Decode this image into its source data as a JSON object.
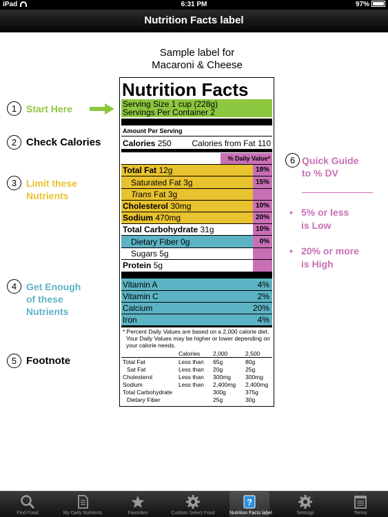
{
  "status": {
    "device": "iPad",
    "time": "6:31 PM",
    "battery": "97%"
  },
  "navbar": {
    "title": "Nutrition Facts label"
  },
  "sample": {
    "line1": "Sample label for",
    "line2": "Macaroni & Cheese"
  },
  "steps": [
    {
      "num": "1",
      "text": "Start Here"
    },
    {
      "num": "2",
      "text": "Check Calories"
    },
    {
      "num": "3",
      "line1": "Limit these",
      "line2": "Nutrients"
    },
    {
      "num": "4",
      "line1": "Get Enough",
      "line2": "of these",
      "line3": "Nutrients"
    },
    {
      "num": "5",
      "text": "Footnote"
    },
    {
      "num": "6",
      "line1": "Quick Guide",
      "line2": "to % DV"
    }
  ],
  "guide": {
    "b1_line1": "5% or less",
    "b1_line2": "is Low",
    "b2_line1": "20% or more",
    "b2_line2": "is High",
    "bullet": "•"
  },
  "label": {
    "title": "Nutrition Facts",
    "serving_size": "Serving Size 1 cup (228g)",
    "servings_per": "Servings Per Container 2",
    "amount_per": "Amount Per Serving",
    "calories_label": "Calories",
    "calories_value": "250",
    "calories_fat": "Calories from Fat 110",
    "dv_header": "% Daily Value*",
    "nutrients": [
      {
        "name": "Total Fat",
        "amount": "12g",
        "pct": "18%"
      },
      {
        "name": "Saturated Fat",
        "amount": "3g",
        "pct": "15%"
      },
      {
        "name": "Trans",
        "amount": "Fat 3g",
        "pct": ""
      },
      {
        "name": "Cholesterol",
        "amount": "30mg",
        "pct": "10%"
      },
      {
        "name": "Sodium",
        "amount": "470mg",
        "pct": "20%"
      },
      {
        "name": "Total Carbohydrate",
        "amount": "31g",
        "pct": "10%"
      },
      {
        "name": "Dietary Fiber",
        "amount": "0g",
        "pct": "0%"
      },
      {
        "name": "Sugars",
        "amount": "5g",
        "pct": ""
      },
      {
        "name": "Protein",
        "amount": "5g",
        "pct": ""
      }
    ],
    "vitamins": [
      {
        "name": "Vitamin A",
        "pct": "4%"
      },
      {
        "name": "Vitamin C",
        "pct": "2%"
      },
      {
        "name": "Calcium",
        "pct": "20%"
      },
      {
        "name": "Iron",
        "pct": "4%"
      }
    ],
    "footnote1": "* Percent Daily Values are based on a 2,000 calorie diet.",
    "footnote2": "Your Daily Values may be higher or lower depending on",
    "footnote3": "your calorie needs.",
    "ft_header": {
      "c1": "Calories",
      "c2": "2,000",
      "c3": "2,500"
    },
    "ft_rows": [
      {
        "name": "Total Fat",
        "q": "Less than",
        "a": "65g",
        "b": "80g"
      },
      {
        "name": "Sat Fat",
        "q": "Less than",
        "a": "20g",
        "b": "25g"
      },
      {
        "name": "Cholesterol",
        "q": "Less than",
        "a": "300mg",
        "b": "300mg"
      },
      {
        "name": "Sodium",
        "q": "Less than",
        "a": "2,400mg",
        "b": "2,400mg"
      },
      {
        "name": "Total Carbohydrate",
        "q": "",
        "a": "300g",
        "b": "375g"
      },
      {
        "name": "Dietary Fiber",
        "q": "",
        "a": "25g",
        "b": "30g"
      }
    ]
  },
  "tabs": [
    {
      "label": "Find Food",
      "icon": "search-icon"
    },
    {
      "label": "My Daily Nutrients",
      "icon": "document-icon"
    },
    {
      "label": "Favorites",
      "icon": "star-icon"
    },
    {
      "label": "Custom Select Food",
      "icon": "gear-icon"
    },
    {
      "label": "Nutrition Facts label",
      "icon": "help-icon"
    },
    {
      "label": "Settings",
      "icon": "gear-icon"
    },
    {
      "label": "Terms",
      "icon": "notepad-icon"
    }
  ],
  "colors": {
    "green": "#8dc63f",
    "yellow": "#e8c22f",
    "teal": "#5cb3c4",
    "pink": "#c86fb6"
  }
}
